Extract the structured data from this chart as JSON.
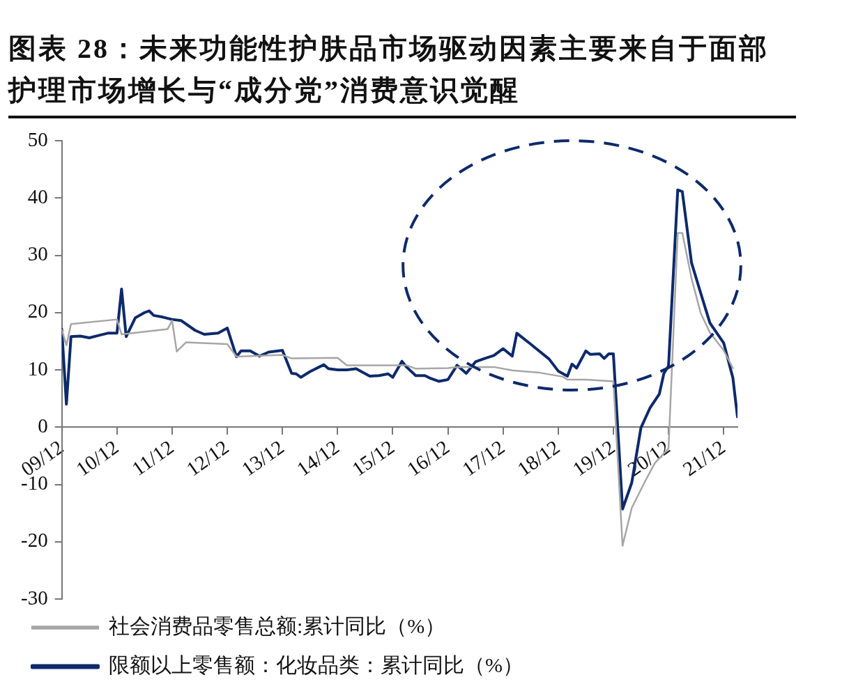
{
  "chart_data": {
    "type": "line",
    "title": "图表 28：未来功能性护肤品市场驱动因素主要来自于面部护理市场增长与“成分党”消费意识觉醒",
    "xlim": [
      "2009-12",
      "2022-03"
    ],
    "xticks": [
      {
        "value": "2009-12",
        "label": "09/12"
      },
      {
        "value": "2010-12",
        "label": "10/12"
      },
      {
        "value": "2011-12",
        "label": "11/12"
      },
      {
        "value": "2012-12",
        "label": "12/12"
      },
      {
        "value": "2013-12",
        "label": "13/12"
      },
      {
        "value": "2014-12",
        "label": "14/12"
      },
      {
        "value": "2015-12",
        "label": "15/12"
      },
      {
        "value": "2016-12",
        "label": "16/12"
      },
      {
        "value": "2017-12",
        "label": "17/12"
      },
      {
        "value": "2018-12",
        "label": "18/12"
      },
      {
        "value": "2019-12",
        "label": "19/12"
      },
      {
        "value": "2020-12",
        "label": "20/12"
      },
      {
        "value": "2021-12",
        "label": "21/12"
      }
    ],
    "ylim": [
      -30,
      50
    ],
    "yticks": [
      -30,
      -20,
      -10,
      0,
      10,
      20,
      30,
      40,
      50
    ],
    "grid": false,
    "legend": "bottom",
    "marker": "none",
    "line_style": "solid",
    "series": [
      {
        "name": "社会消费品零售总额:累计同比（%）",
        "color": "#a6a6a6",
        "x": [
          "2009-12",
          "2010-01",
          "2010-02",
          "2010-12",
          "2011-01",
          "2011-11",
          "2011-12",
          "2012-01",
          "2012-03",
          "2012-12",
          "2013-02",
          "2013-12",
          "2014-02",
          "2014-12",
          "2015-02",
          "2016-03",
          "2016-05",
          "2016-12",
          "2017-02",
          "2017-10",
          "2018-02",
          "2018-08",
          "2019-01",
          "2019-02",
          "2019-06",
          "2019-12",
          "2020-02",
          "2020-04",
          "2020-07",
          "2020-09",
          "2020-12",
          "2021-02",
          "2021-03",
          "2021-05",
          "2021-07",
          "2021-09",
          "2021-12",
          "2022-02"
        ],
        "values": [
          17.0,
          14.3,
          18.0,
          18.8,
          16.2,
          17.1,
          18.6,
          13.2,
          14.8,
          14.5,
          12.3,
          12.6,
          12.0,
          12.1,
          10.8,
          10.8,
          10.2,
          10.3,
          10.5,
          10.5,
          9.9,
          9.5,
          8.8,
          8.3,
          8.3,
          8.0,
          -20.7,
          -14.1,
          -9.3,
          -6.3,
          -3.7,
          33.9,
          33.9,
          26.0,
          19.9,
          16.5,
          13.4,
          10.3
        ]
      },
      {
        "name": "限额以上零售额：化妆品类：累计同比（%）",
        "color": "#0d2a6b",
        "x": [
          "2009-12",
          "2010-01",
          "2010-02",
          "2010-04",
          "2010-06",
          "2010-08",
          "2010-10",
          "2010-12",
          "2011-01",
          "2011-02",
          "2011-04",
          "2011-06",
          "2011-07",
          "2011-08",
          "2011-10",
          "2011-12",
          "2012-02",
          "2012-05",
          "2012-07",
          "2012-10",
          "2012-12",
          "2013-02",
          "2013-03",
          "2013-05",
          "2013-07",
          "2013-09",
          "2013-12",
          "2014-02",
          "2014-03",
          "2014-04",
          "2014-06",
          "2014-09",
          "2014-10",
          "2014-12",
          "2015-02",
          "2015-04",
          "2015-07",
          "2015-09",
          "2015-11",
          "2015-12",
          "2016-02",
          "2016-03",
          "2016-05",
          "2016-07",
          "2016-08",
          "2016-10",
          "2016-12",
          "2017-02",
          "2017-04",
          "2017-06",
          "2017-08",
          "2017-10",
          "2017-12",
          "2018-02",
          "2018-03",
          "2018-06",
          "2018-10",
          "2018-12",
          "2019-02",
          "2019-03",
          "2019-04",
          "2019-06",
          "2019-07",
          "2019-09",
          "2019-10",
          "2019-11",
          "2019-12",
          "2020-02",
          "2020-04",
          "2020-06",
          "2020-08",
          "2020-10",
          "2020-11",
          "2020-12",
          "2021-02",
          "2021-03",
          "2021-05",
          "2021-07",
          "2021-09",
          "2021-12",
          "2022-02",
          "2022-03"
        ],
        "values": [
          17.1,
          4.0,
          15.8,
          15.9,
          15.6,
          16.0,
          16.4,
          16.4,
          24.1,
          15.8,
          19.1,
          20.0,
          20.3,
          19.5,
          19.2,
          18.8,
          18.6,
          16.9,
          16.2,
          16.4,
          17.3,
          12.3,
          13.3,
          13.3,
          12.4,
          13.1,
          13.4,
          9.4,
          9.3,
          8.7,
          9.7,
          10.9,
          10.2,
          10.0,
          10.0,
          10.2,
          8.9,
          9.0,
          9.3,
          8.7,
          11.5,
          10.5,
          9.0,
          9.0,
          8.6,
          8.0,
          8.3,
          10.8,
          9.4,
          11.4,
          12.0,
          12.5,
          13.7,
          12.4,
          16.4,
          14.5,
          11.9,
          9.8,
          8.9,
          11.0,
          10.3,
          13.3,
          12.7,
          12.8,
          12.0,
          12.8,
          12.8,
          -14.3,
          -9.7,
          -0.1,
          3.4,
          5.8,
          9.4,
          10.7,
          41.4,
          41.1,
          28.7,
          23.4,
          18.2,
          14.7,
          8.6,
          1.8
        ]
      }
    ]
  }
}
